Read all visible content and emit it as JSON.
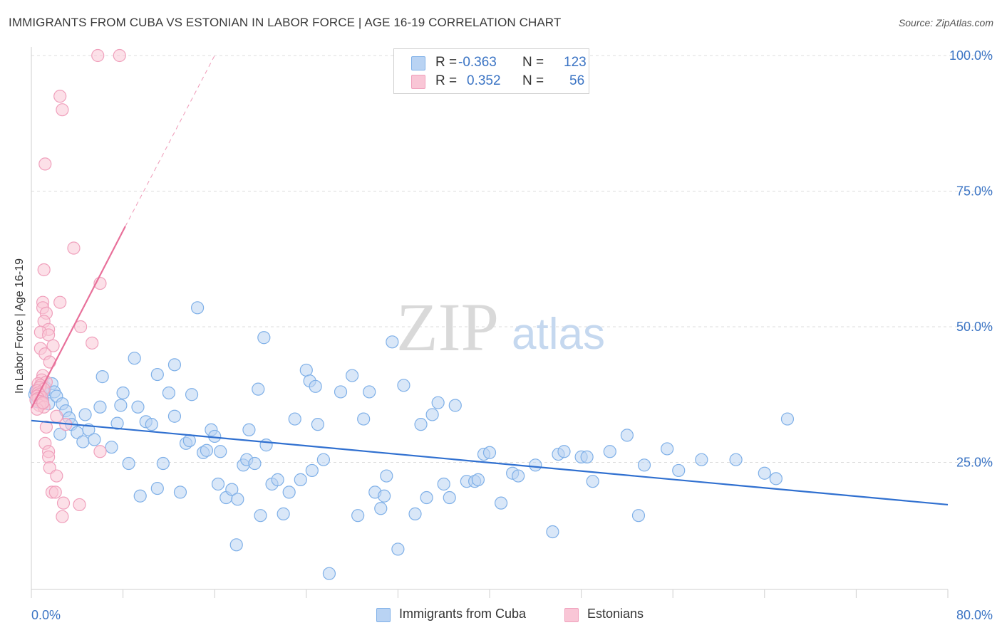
{
  "title": "IMMIGRANTS FROM CUBA VS ESTONIAN IN LABOR FORCE | AGE 16-19 CORRELATION CHART",
  "source": "Source: ZipAtlas.com",
  "watermark": {
    "part1": "ZIP",
    "part2": "atlas"
  },
  "legend_top": {
    "r_label": "R =",
    "n_label": "N =",
    "rows": [
      {
        "r": "-0.363",
        "n": "123",
        "color": "#7fb0e8",
        "fill": "#b9d3f3"
      },
      {
        "r": "0.352",
        "n": "56",
        "color": "#f0a0bc",
        "fill": "#f9c6d6"
      }
    ]
  },
  "chart_data": {
    "type": "scatter",
    "title": "IMMIGRANTS FROM CUBA VS ESTONIAN IN LABOR FORCE | AGE 16-19 CORRELATION CHART",
    "xlabel": "",
    "ylabel": "In Labor Force | Age 16-19",
    "xlim": [
      0,
      80
    ],
    "ylim": [
      0,
      100
    ],
    "x_tick_labels": [
      "0.0%",
      "80.0%"
    ],
    "y_ticks": [
      25,
      50,
      75,
      100
    ],
    "y_tick_labels": [
      "25.0%",
      "50.0%",
      "75.0%",
      "100.0%"
    ],
    "grid": true,
    "legend_position": "bottom",
    "series": [
      {
        "name": "Immigrants from Cuba",
        "color": "#3070d0",
        "marker_fill": "#b9d3f3",
        "marker_stroke": "#7fb0e8",
        "trend": {
          "x": [
            0,
            80
          ],
          "y": [
            32.7,
            17.2
          ]
        },
        "points": [
          [
            0.3,
            37.5
          ],
          [
            0.5,
            36.2
          ],
          [
            0.6,
            38.5
          ],
          [
            0.8,
            37.8
          ],
          [
            1.0,
            36.5
          ],
          [
            1.2,
            38.8
          ],
          [
            1.5,
            35.8
          ],
          [
            1.8,
            39.5
          ],
          [
            2.0,
            38.0
          ],
          [
            2.2,
            37.2
          ],
          [
            2.5,
            30.2
          ],
          [
            2.7,
            35.8
          ],
          [
            3.0,
            34.5
          ],
          [
            3.3,
            33.2
          ],
          [
            3.5,
            32.0
          ],
          [
            4.0,
            30.5
          ],
          [
            4.5,
            28.8
          ],
          [
            4.7,
            33.8
          ],
          [
            5.0,
            31.0
          ],
          [
            5.5,
            29.2
          ],
          [
            6.0,
            35.2
          ],
          [
            6.2,
            40.8
          ],
          [
            7.0,
            27.8
          ],
          [
            7.5,
            32.2
          ],
          [
            7.8,
            35.5
          ],
          [
            8.0,
            37.8
          ],
          [
            8.5,
            24.8
          ],
          [
            9.0,
            44.2
          ],
          [
            9.3,
            35.2
          ],
          [
            9.5,
            18.8
          ],
          [
            10.0,
            32.5
          ],
          [
            10.5,
            32.0
          ],
          [
            11.0,
            20.2
          ],
          [
            11.0,
            41.2
          ],
          [
            11.5,
            24.8
          ],
          [
            12.0,
            37.8
          ],
          [
            12.5,
            33.5
          ],
          [
            12.5,
            43.0
          ],
          [
            13.0,
            19.5
          ],
          [
            13.5,
            28.5
          ],
          [
            13.8,
            29.0
          ],
          [
            14.0,
            37.5
          ],
          [
            14.5,
            53.5
          ],
          [
            15.0,
            26.8
          ],
          [
            15.3,
            27.2
          ],
          [
            15.7,
            31.0
          ],
          [
            16.0,
            29.8
          ],
          [
            16.3,
            21.0
          ],
          [
            16.5,
            27.0
          ],
          [
            17.0,
            18.5
          ],
          [
            17.5,
            20.0
          ],
          [
            17.9,
            9.8
          ],
          [
            18.0,
            18.2
          ],
          [
            18.5,
            24.5
          ],
          [
            18.8,
            25.5
          ],
          [
            19.0,
            31.0
          ],
          [
            19.5,
            24.8
          ],
          [
            19.8,
            38.5
          ],
          [
            20.0,
            15.2
          ],
          [
            20.3,
            48.0
          ],
          [
            20.5,
            28.2
          ],
          [
            21.0,
            21.0
          ],
          [
            21.5,
            21.8
          ],
          [
            22.0,
            15.5
          ],
          [
            22.5,
            19.5
          ],
          [
            23.0,
            33.0
          ],
          [
            23.5,
            21.8
          ],
          [
            24.0,
            42.0
          ],
          [
            24.3,
            40.0
          ],
          [
            24.5,
            23.5
          ],
          [
            24.8,
            39.0
          ],
          [
            25.0,
            32.0
          ],
          [
            25.5,
            25.5
          ],
          [
            26.0,
            4.5
          ],
          [
            27.0,
            38.0
          ],
          [
            28.0,
            41.0
          ],
          [
            28.5,
            15.2
          ],
          [
            29.0,
            33.0
          ],
          [
            29.5,
            38.0
          ],
          [
            30.0,
            19.5
          ],
          [
            30.5,
            16.5
          ],
          [
            30.8,
            18.8
          ],
          [
            31.0,
            22.5
          ],
          [
            31.5,
            47.2
          ],
          [
            32.0,
            9.0
          ],
          [
            32.5,
            39.2
          ],
          [
            33.5,
            15.5
          ],
          [
            34.0,
            32.0
          ],
          [
            34.5,
            18.5
          ],
          [
            35.0,
            33.8
          ],
          [
            35.5,
            36.0
          ],
          [
            36.0,
            21.0
          ],
          [
            36.5,
            18.5
          ],
          [
            37.0,
            35.5
          ],
          [
            38.0,
            21.5
          ],
          [
            38.7,
            21.5
          ],
          [
            39.0,
            21.8
          ],
          [
            39.5,
            26.5
          ],
          [
            40.0,
            26.8
          ],
          [
            41.0,
            17.5
          ],
          [
            42.0,
            23.0
          ],
          [
            42.5,
            22.5
          ],
          [
            44.0,
            24.5
          ],
          [
            45.5,
            12.2
          ],
          [
            46.0,
            26.5
          ],
          [
            46.5,
            27.0
          ],
          [
            48.0,
            26.0
          ],
          [
            48.5,
            26.0
          ],
          [
            49.0,
            21.5
          ],
          [
            50.5,
            27.0
          ],
          [
            52.0,
            30.0
          ],
          [
            53.0,
            15.2
          ],
          [
            53.5,
            24.5
          ],
          [
            55.5,
            27.5
          ],
          [
            56.5,
            23.5
          ],
          [
            58.5,
            25.5
          ],
          [
            61.5,
            25.5
          ],
          [
            64.0,
            23.0
          ],
          [
            65.0,
            22.0
          ],
          [
            66.0,
            33.0
          ],
          [
            0.4,
            38.2
          ],
          [
            0.7,
            37.0
          ],
          [
            1.1,
            38.0
          ]
        ]
      },
      {
        "name": "Estonians",
        "color": "#e8709a",
        "marker_fill": "#f9c6d6",
        "marker_stroke": "#f0a0bc",
        "trend": {
          "x": [
            0,
            8.2
          ],
          "y": [
            35.0,
            68.5
          ]
        },
        "trend_ext": {
          "x": [
            8.2,
            16.0
          ],
          "y": [
            68.5,
            100.0
          ]
        },
        "points": [
          [
            5.8,
            100.0
          ],
          [
            7.7,
            100.0
          ],
          [
            2.5,
            92.5
          ],
          [
            2.7,
            90.0
          ],
          [
            1.2,
            80.0
          ],
          [
            3.7,
            64.5
          ],
          [
            1.1,
            60.5
          ],
          [
            6.0,
            58.0
          ],
          [
            1.0,
            54.5
          ],
          [
            2.5,
            54.5
          ],
          [
            1.0,
            53.5
          ],
          [
            1.3,
            52.5
          ],
          [
            1.1,
            51.0
          ],
          [
            4.3,
            50.0
          ],
          [
            1.5,
            49.5
          ],
          [
            0.8,
            49.0
          ],
          [
            1.5,
            48.5
          ],
          [
            5.3,
            47.0
          ],
          [
            1.9,
            46.5
          ],
          [
            0.8,
            46.0
          ],
          [
            1.2,
            45.0
          ],
          [
            1.6,
            43.5
          ],
          [
            1.0,
            41.0
          ],
          [
            0.9,
            40.2
          ],
          [
            1.3,
            39.8
          ],
          [
            0.6,
            39.5
          ],
          [
            0.8,
            39.2
          ],
          [
            0.7,
            38.8
          ],
          [
            1.1,
            38.5
          ],
          [
            0.5,
            38.2
          ],
          [
            0.6,
            37.8
          ],
          [
            0.7,
            37.5
          ],
          [
            0.5,
            37.2
          ],
          [
            0.9,
            37.0
          ],
          [
            0.6,
            36.8
          ],
          [
            0.4,
            36.5
          ],
          [
            0.8,
            36.2
          ],
          [
            1.0,
            35.8
          ],
          [
            0.7,
            35.5
          ],
          [
            1.1,
            35.2
          ],
          [
            0.5,
            34.8
          ],
          [
            2.2,
            33.5
          ],
          [
            3.0,
            32.0
          ],
          [
            1.3,
            31.5
          ],
          [
            1.2,
            28.5
          ],
          [
            1.5,
            27.0
          ],
          [
            6.0,
            27.0
          ],
          [
            1.5,
            26.0
          ],
          [
            1.6,
            24.0
          ],
          [
            2.2,
            22.5
          ],
          [
            1.8,
            19.5
          ],
          [
            2.1,
            19.5
          ],
          [
            2.8,
            17.5
          ],
          [
            4.2,
            17.2
          ],
          [
            2.7,
            15.0
          ],
          [
            1.0,
            36.0
          ]
        ]
      }
    ]
  },
  "legend_bottom": [
    {
      "label": "Immigrants from Cuba"
    },
    {
      "label": "Estonians"
    }
  ]
}
